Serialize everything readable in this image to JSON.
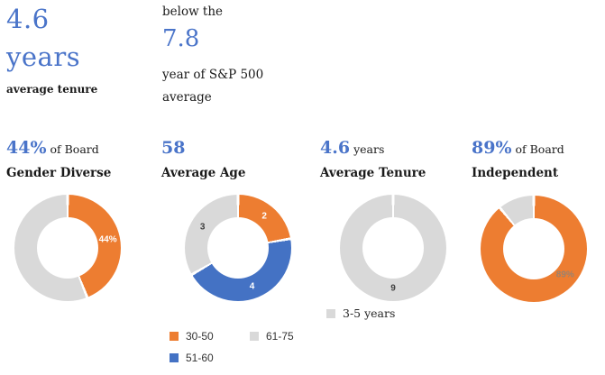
{
  "colors": {
    "accent_blue": "#4472C4",
    "accent_orange": "#ED7D31",
    "neutral_gray": "#D9D9D9",
    "text_dark": "#1A1A1A",
    "heading_blue": "#4A74C9"
  },
  "hero": {
    "tenure": {
      "value": "4.6",
      "unit": "years",
      "caption": "average tenure"
    },
    "benchmark": {
      "intro": "below the",
      "value": "7.8",
      "detail1": "year of S&P 500",
      "detail2": "average"
    }
  },
  "stats": [
    {
      "value": "44%",
      "unit": "of Board",
      "title": "Gender Diverse"
    },
    {
      "value": "58",
      "unit": "",
      "title": "Average Age"
    },
    {
      "value": "4.6",
      "unit": "years",
      "title": "Average Tenure"
    },
    {
      "value": "89%",
      "unit": "of Board",
      "title": "Independent"
    }
  ],
  "chart_data": [
    {
      "type": "pie",
      "donut": true,
      "title": "Gender Diverse",
      "units": "percent of board",
      "segments": [
        {
          "name": "gender diverse",
          "value": 44,
          "color": "#ED7D31",
          "label": "44%",
          "label_color": "#FFFFFF",
          "show_label": true
        },
        {
          "name": "other",
          "value": 56,
          "color": "#D9D9D9",
          "label": "",
          "label_color": "#404040",
          "show_label": false
        }
      ]
    },
    {
      "type": "pie",
      "donut": true,
      "title": "Average Age",
      "units": "directors per age bucket",
      "segments": [
        {
          "name": "30-50",
          "value": 2,
          "color": "#ED7D31",
          "label": "2",
          "label_color": "#FFFFFF",
          "show_label": true
        },
        {
          "name": "51-60",
          "value": 4,
          "color": "#4472C4",
          "label": "4",
          "label_color": "#FFFFFF",
          "show_label": true
        },
        {
          "name": "61-75",
          "value": 3,
          "color": "#D9D9D9",
          "label": "3",
          "label_color": "#404040",
          "show_label": true
        }
      ],
      "legend": [
        {
          "label": "30-50",
          "color": "#ED7D31"
        },
        {
          "label": "61-75",
          "color": "#D9D9D9"
        },
        {
          "label": "51-60",
          "color": "#4472C4"
        }
      ],
      "legend_position": "bottom"
    },
    {
      "type": "pie",
      "donut": true,
      "title": "Average Tenure",
      "units": "directors per tenure bucket",
      "segments": [
        {
          "name": "3-5 years",
          "value": 9,
          "color": "#D9D9D9",
          "label": "9",
          "label_color": "#404040",
          "show_label": true
        }
      ],
      "legend": [
        {
          "label": "3-5 years",
          "color": "#D9D9D9"
        }
      ],
      "legend_position": "bottom"
    },
    {
      "type": "pie",
      "donut": true,
      "title": "Independent",
      "units": "percent of board",
      "segments": [
        {
          "name": "independent",
          "value": 89,
          "color": "#ED7D31",
          "label": "89%",
          "label_color": "#9A8270",
          "show_label": true,
          "label_angle": 130
        },
        {
          "name": "non-independent",
          "value": 11,
          "color": "#D9D9D9",
          "label": "",
          "label_color": "#404040",
          "show_label": false
        }
      ]
    }
  ]
}
